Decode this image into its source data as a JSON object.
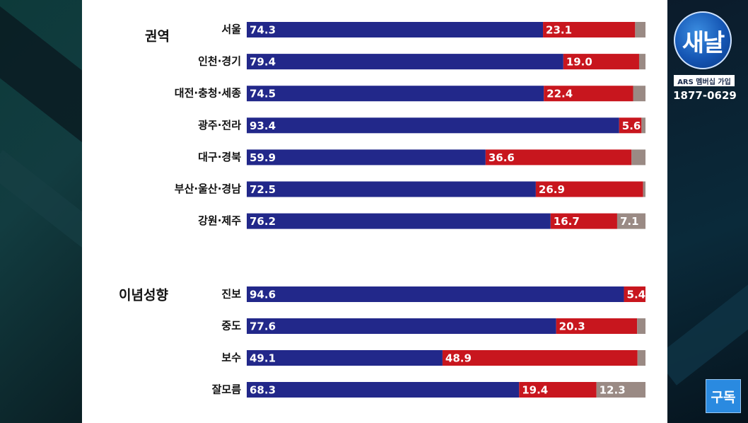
{
  "channel": {
    "logo_text": "새날",
    "ars_label": "ARS 멤버십 가입",
    "phone": "1877-0629",
    "subscribe_label": "구독"
  },
  "colors": {
    "blue": "#22288a",
    "red": "#c8161e",
    "gray": "#9a8a84"
  },
  "chart_data": [
    {
      "type": "bar",
      "orientation": "horizontal",
      "stacked": true,
      "title": "권역",
      "categories": [
        "서울",
        "인천·경기",
        "대전·충청·세종",
        "광주·전라",
        "대구·경북",
        "부산·울산·경남",
        "강원·제주"
      ],
      "series": [
        {
          "values": [
            74.3,
            79.4,
            74.5,
            93.4,
            59.9,
            72.5,
            76.2
          ],
          "labels": [
            "74.3",
            "79.4",
            "74.5",
            "93.4",
            "59.9",
            "72.5",
            "76.2"
          ]
        },
        {
          "values": [
            23.1,
            19.0,
            22.4,
            5.6,
            36.6,
            26.9,
            16.7
          ],
          "labels": [
            "23.1",
            "19.0",
            "22.4",
            "5.6",
            "36.6",
            "26.9",
            "16.7"
          ]
        },
        {
          "values": [
            2.6,
            1.6,
            3.1,
            1.0,
            3.5,
            0.6,
            7.1
          ],
          "labels": [
            "",
            "",
            "",
            "",
            "",
            "",
            "7.1"
          ]
        }
      ],
      "xlim": [
        0,
        100
      ]
    },
    {
      "type": "bar",
      "orientation": "horizontal",
      "stacked": true,
      "title": "이념성향",
      "categories": [
        "진보",
        "중도",
        "보수",
        "잘모름"
      ],
      "series": [
        {
          "values": [
            94.6,
            77.6,
            49.1,
            68.3
          ],
          "labels": [
            "94.6",
            "77.6",
            "49.1",
            "68.3"
          ]
        },
        {
          "values": [
            5.4,
            20.3,
            48.9,
            19.4
          ],
          "labels": [
            "5.4",
            "20.3",
            "48.9",
            "19.4"
          ]
        },
        {
          "values": [
            0.0,
            2.1,
            2.0,
            12.3
          ],
          "labels": [
            "",
            "",
            "",
            "12.3"
          ]
        }
      ],
      "xlim": [
        0,
        100
      ]
    }
  ]
}
